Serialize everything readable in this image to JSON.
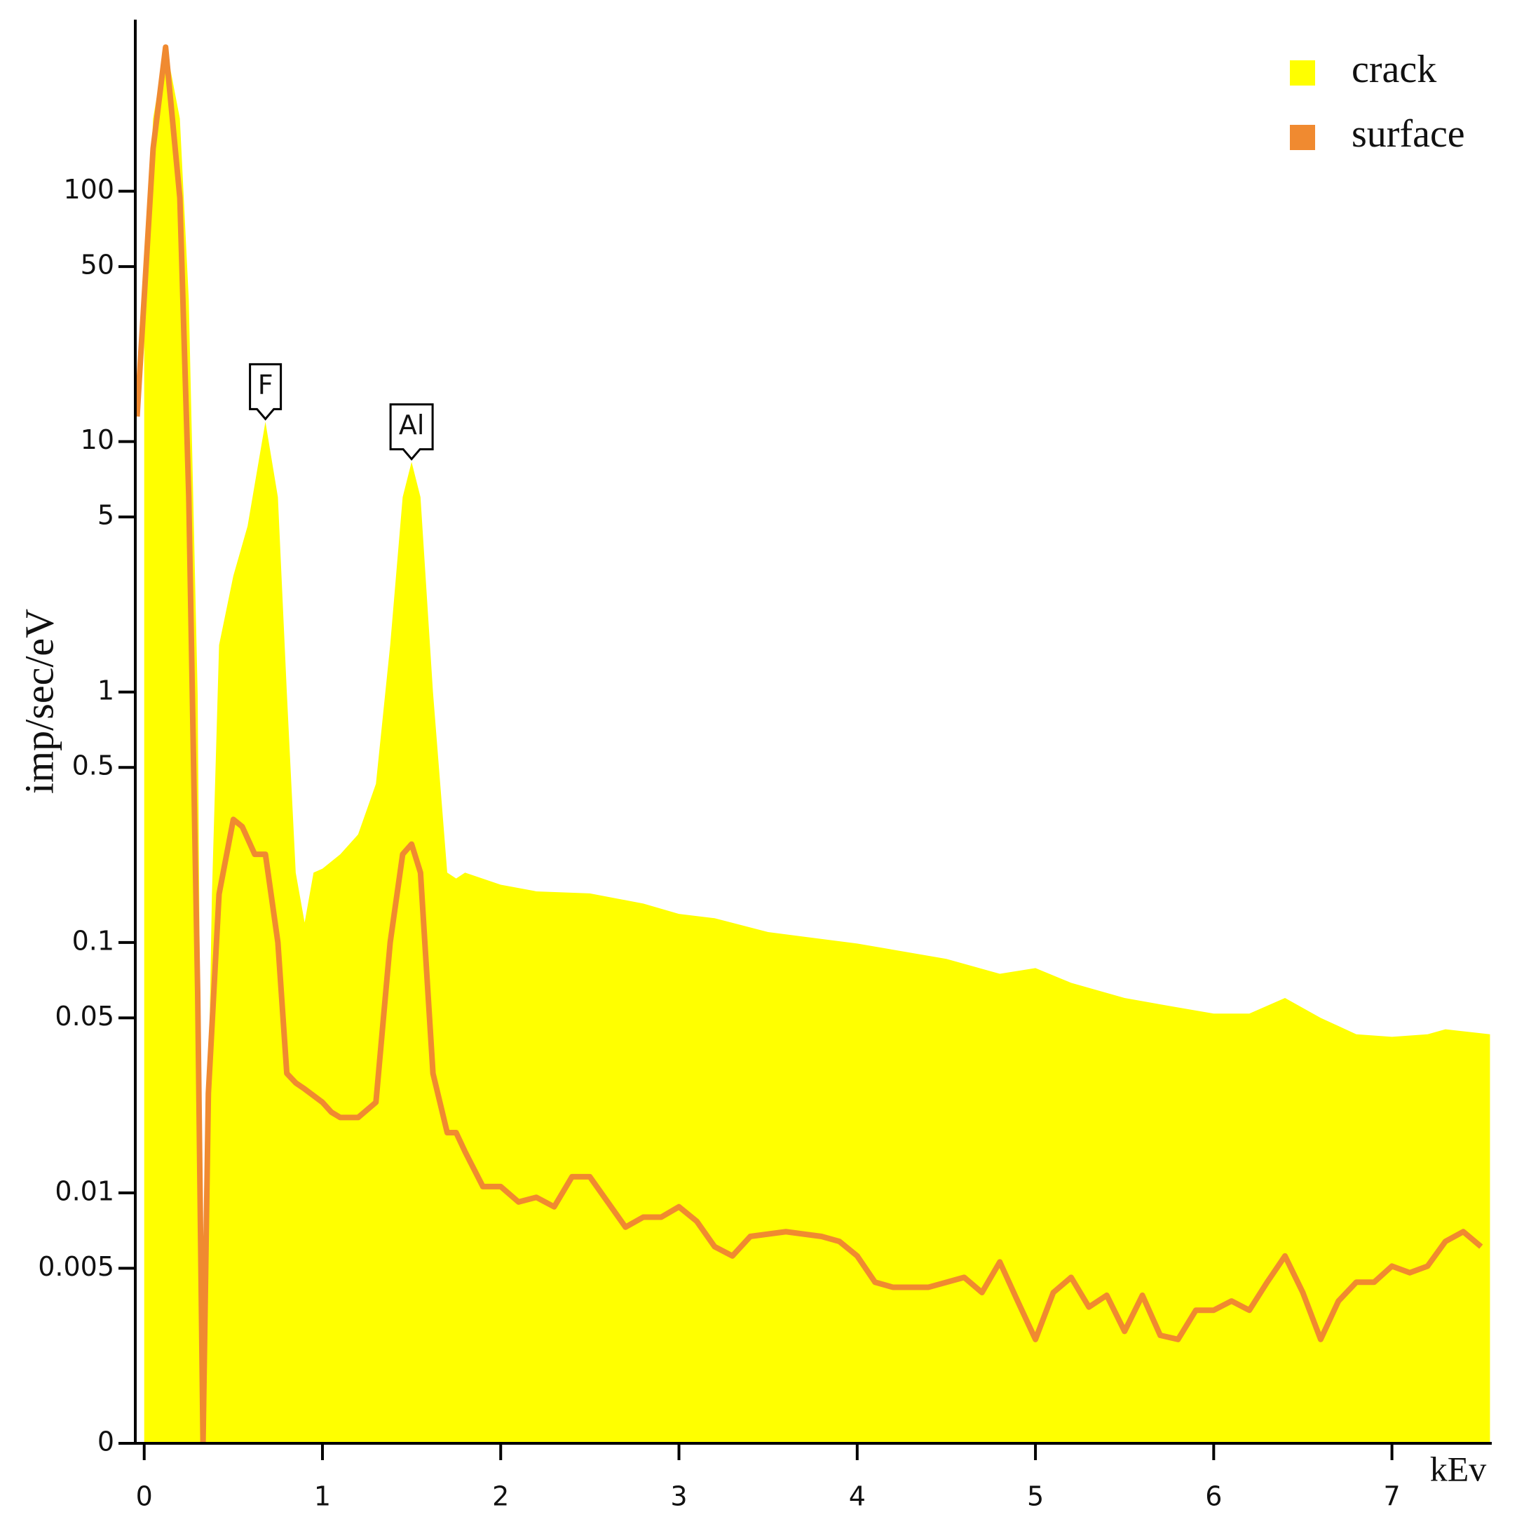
{
  "chart_data": {
    "type": "area-line",
    "x_label": "kEv",
    "y_label": "imp/sec/eV",
    "log_y": true,
    "legend": "upper right",
    "xlim": [
      -0.05,
      7.56
    ],
    "ylim": [
      0.001,
      500
    ],
    "xticks": [
      0,
      1,
      2,
      3,
      4,
      5,
      6,
      7
    ],
    "yticks": [
      {
        "value": 0.001,
        "label": "0"
      },
      0.005,
      0.01,
      0.05,
      0.1,
      0.5,
      1,
      5,
      10,
      50,
      100
    ],
    "series": [
      {
        "name": "crack",
        "color": "#ffff00",
        "style": "area",
        "x": [
          0.0,
          0.05,
          0.12,
          0.2,
          0.25,
          0.3,
          0.33,
          0.38,
          0.42,
          0.5,
          0.58,
          0.68,
          0.75,
          0.8,
          0.85,
          0.9,
          0.95,
          1.0,
          1.1,
          1.2,
          1.3,
          1.38,
          1.45,
          1.5,
          1.55,
          1.62,
          1.7,
          1.75,
          1.8,
          2.0,
          2.2,
          2.5,
          2.8,
          3.0,
          3.2,
          3.5,
          4.0,
          4.5,
          4.8,
          5.0,
          5.2,
          5.5,
          5.8,
          6.0,
          6.2,
          6.4,
          6.6,
          6.8,
          7.0,
          7.2,
          7.3,
          7.55
        ],
        "values": [
          37.6,
          195,
          386,
          195,
          37,
          0.97,
          0.0016,
          0.156,
          1.54,
          2.91,
          4.6,
          12,
          6.0,
          1.0,
          0.19,
          0.12,
          0.19,
          0.197,
          0.225,
          0.27,
          0.43,
          1.54,
          6.0,
          8.3,
          6.0,
          1.0,
          0.19,
          0.18,
          0.19,
          0.17,
          0.16,
          0.157,
          0.143,
          0.13,
          0.125,
          0.11,
          0.099,
          0.086,
          0.075,
          0.079,
          0.069,
          0.06,
          0.055,
          0.052,
          0.052,
          0.06,
          0.05,
          0.043,
          0.042,
          0.043,
          0.045,
          0.043
        ]
      },
      {
        "name": "surface",
        "color": "#f08a30",
        "style": "line",
        "x": [
          -0.04,
          0.05,
          0.12,
          0.2,
          0.25,
          0.3,
          0.33,
          0.36,
          0.42,
          0.5,
          0.55,
          0.62,
          0.68,
          0.75,
          0.8,
          0.85,
          0.9,
          1.0,
          1.05,
          1.1,
          1.2,
          1.3,
          1.38,
          1.45,
          1.5,
          1.55,
          1.62,
          1.7,
          1.75,
          1.8,
          1.9,
          2.0,
          2.1,
          2.2,
          2.3,
          2.4,
          2.5,
          2.6,
          2.7,
          2.8,
          2.9,
          3.0,
          3.1,
          3.2,
          3.3,
          3.4,
          3.6,
          3.8,
          3.9,
          4.0,
          4.1,
          4.2,
          4.4,
          4.6,
          4.7,
          4.8,
          4.9,
          5.0,
          5.1,
          5.2,
          5.3,
          5.4,
          5.5,
          5.6,
          5.7,
          5.8,
          5.9,
          6.0,
          6.1,
          6.2,
          6.3,
          6.4,
          6.5,
          6.6,
          6.7,
          6.8,
          6.9,
          7.0,
          7.1,
          7.2,
          7.3,
          7.4,
          7.5
        ],
        "values": [
          12.6,
          148,
          376,
          94,
          6.05,
          0.063,
          0.001,
          0.025,
          0.156,
          0.31,
          0.29,
          0.225,
          0.225,
          0.1,
          0.03,
          0.0275,
          0.026,
          0.023,
          0.021,
          0.02,
          0.02,
          0.023,
          0.1,
          0.225,
          0.247,
          0.19,
          0.03,
          0.0174,
          0.0174,
          0.0146,
          0.0106,
          0.0106,
          0.0092,
          0.0096,
          0.0088,
          0.0116,
          0.0116,
          0.0092,
          0.0073,
          0.008,
          0.008,
          0.0088,
          0.0077,
          0.0061,
          0.0056,
          0.0067,
          0.007,
          0.0067,
          0.0064,
          0.0056,
          0.0044,
          0.0042,
          0.0042,
          0.0046,
          0.004,
          0.0053,
          0.0037,
          0.0026,
          0.004,
          0.0046,
          0.0035,
          0.0039,
          0.0028,
          0.0039,
          0.0027,
          0.0026,
          0.0034,
          0.0034,
          0.0037,
          0.0034,
          0.0044,
          0.0056,
          0.004,
          0.0026,
          0.0037,
          0.0044,
          0.0044,
          0.0051,
          0.0048,
          0.0051,
          0.0064,
          0.007,
          0.0061
        ]
      }
    ],
    "annotations": [
      {
        "text": "F",
        "x": 0.68
      },
      {
        "text": "Al",
        "x": 1.5
      }
    ]
  }
}
